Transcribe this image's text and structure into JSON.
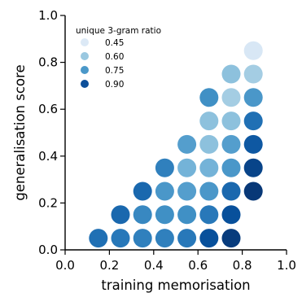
{
  "chart_data": {
    "type": "scatter",
    "xlabel": "training memorisation",
    "ylabel": "generalisation score",
    "xlim": [
      0.0,
      1.0
    ],
    "ylim": [
      0.0,
      1.0
    ],
    "xticks": [
      "0.0",
      "0.2",
      "0.4",
      "0.6",
      "0.8",
      "1.0"
    ],
    "xtick_values": [
      0.0,
      0.2,
      0.4,
      0.6,
      0.8,
      1.0
    ],
    "yticks": [
      "0.0",
      "0.2",
      "0.4",
      "0.6",
      "0.8",
      "1.0"
    ],
    "ytick_values": [
      0.0,
      0.2,
      0.4,
      0.6,
      0.8,
      1.0
    ],
    "grid": false,
    "legend": {
      "title": "unique 3-gram ratio",
      "placement": "top-left",
      "entries": [
        {
          "label": "0.45",
          "value": 0.45,
          "color": "#dce9f6"
        },
        {
          "label": "0.60",
          "value": 0.6,
          "color": "#9ac8e0"
        },
        {
          "label": "0.75",
          "value": 0.75,
          "color": "#4a98c9"
        },
        {
          "label": "0.90",
          "value": 0.9,
          "color": "#0d4f9a"
        }
      ]
    },
    "color_variable": "unique 3-gram ratio",
    "color_scale": "Blues",
    "points": [
      {
        "x": 0.15,
        "y": 0.05,
        "c": 0.84
      },
      {
        "x": 0.25,
        "y": 0.05,
        "c": 0.82
      },
      {
        "x": 0.35,
        "y": 0.05,
        "c": 0.8
      },
      {
        "x": 0.45,
        "y": 0.05,
        "c": 0.8
      },
      {
        "x": 0.55,
        "y": 0.05,
        "c": 0.82
      },
      {
        "x": 0.65,
        "y": 0.05,
        "c": 0.92
      },
      {
        "x": 0.75,
        "y": 0.05,
        "c": 0.97
      },
      {
        "x": 0.25,
        "y": 0.15,
        "c": 0.86
      },
      {
        "x": 0.35,
        "y": 0.15,
        "c": 0.78
      },
      {
        "x": 0.45,
        "y": 0.15,
        "c": 0.76
      },
      {
        "x": 0.55,
        "y": 0.15,
        "c": 0.76
      },
      {
        "x": 0.65,
        "y": 0.15,
        "c": 0.82
      },
      {
        "x": 0.75,
        "y": 0.15,
        "c": 0.92
      },
      {
        "x": 0.35,
        "y": 0.25,
        "c": 0.86
      },
      {
        "x": 0.45,
        "y": 0.25,
        "c": 0.74
      },
      {
        "x": 0.55,
        "y": 0.25,
        "c": 0.72
      },
      {
        "x": 0.65,
        "y": 0.25,
        "c": 0.74
      },
      {
        "x": 0.75,
        "y": 0.25,
        "c": 0.86
      },
      {
        "x": 0.85,
        "y": 0.25,
        "c": 0.98
      },
      {
        "x": 0.45,
        "y": 0.35,
        "c": 0.8
      },
      {
        "x": 0.55,
        "y": 0.35,
        "c": 0.66
      },
      {
        "x": 0.65,
        "y": 0.35,
        "c": 0.66
      },
      {
        "x": 0.75,
        "y": 0.35,
        "c": 0.74
      },
      {
        "x": 0.85,
        "y": 0.35,
        "c": 0.95
      },
      {
        "x": 0.55,
        "y": 0.45,
        "c": 0.72
      },
      {
        "x": 0.65,
        "y": 0.45,
        "c": 0.62
      },
      {
        "x": 0.75,
        "y": 0.45,
        "c": 0.72
      },
      {
        "x": 0.85,
        "y": 0.45,
        "c": 0.9
      },
      {
        "x": 0.65,
        "y": 0.55,
        "c": 0.62
      },
      {
        "x": 0.75,
        "y": 0.55,
        "c": 0.62
      },
      {
        "x": 0.85,
        "y": 0.55,
        "c": 0.84
      },
      {
        "x": 0.65,
        "y": 0.65,
        "c": 0.76
      },
      {
        "x": 0.75,
        "y": 0.65,
        "c": 0.58
      },
      {
        "x": 0.85,
        "y": 0.65,
        "c": 0.74
      },
      {
        "x": 0.75,
        "y": 0.75,
        "c": 0.62
      },
      {
        "x": 0.85,
        "y": 0.75,
        "c": 0.58
      },
      {
        "x": 0.85,
        "y": 0.85,
        "c": 0.45
      }
    ]
  }
}
